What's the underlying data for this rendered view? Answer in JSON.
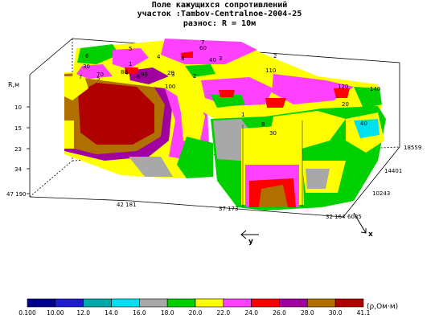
{
  "header": {
    "title_line1": "Поле кажущихся сопротивлений",
    "title_line2": "участок :Tambov-Centralnoe-2004-25",
    "title_line3": "разнос: R = 10м"
  },
  "chart_data": {
    "type": "heatmap",
    "subtype": "3d-block",
    "depth_axis": {
      "label": "R,м",
      "ticks": [
        "10",
        "15",
        "23",
        "34",
        "47 190"
      ]
    },
    "y_axis": {
      "label": "y",
      "ticks": [
        "42 181",
        "37 173",
        "32 164"
      ]
    },
    "x_axis": {
      "label": "x",
      "ticks": [
        "6085",
        "10243",
        "14401",
        "18559"
      ]
    },
    "legend": {
      "unit": "(ρ,Ом·м)",
      "values": [
        "0.100",
        "10.00",
        "12.0",
        "14.0",
        "16.0",
        "18.0",
        "20.0",
        "22.0",
        "24.0",
        "26.0",
        "28.0",
        "30.0",
        "41.1"
      ],
      "colors": [
        "#00008c",
        "#1c1cd0",
        "#00a8a8",
        "#00e0f0",
        "#a8a8a8",
        "#00d000",
        "#ffff00",
        "#ff40ff",
        "#ff0000",
        "#a000a0",
        "#b07000",
        "#b00000"
      ]
    },
    "surface_labels": [
      "7",
      "5",
      "4",
      "6",
      "3",
      "2",
      "1",
      "8",
      "30",
      "20",
      "40",
      "60",
      "70",
      "80",
      "90",
      "100",
      "110",
      "120",
      "140"
    ],
    "colors": {
      "red": "#ff0000",
      "dark_red": "#b00000",
      "brown": "#b07000",
      "purple": "#a000a0",
      "magenta": "#ff40ff",
      "yellow": "#ffff00",
      "green": "#00d000",
      "gray": "#a8a8a8",
      "cyan": "#00e0f0"
    }
  }
}
